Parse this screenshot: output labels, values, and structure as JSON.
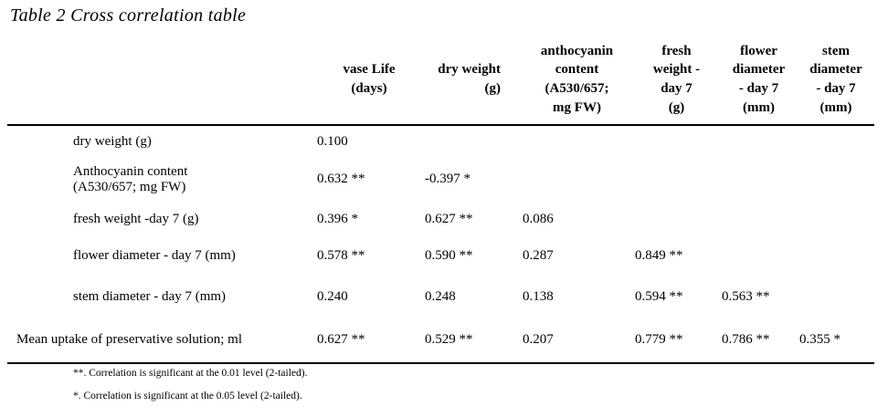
{
  "title": "Table 2 Cross correlation table",
  "table": {
    "columns": [
      "vase Life\n(days)",
      "dry weight\n(g)",
      "anthocyanin\ncontent\n(A530/657;\nmg FW)",
      "fresh\nweight -\nday 7\n(g)",
      "flower\ndiameter\n- day 7\n(mm)",
      "stem\ndiameter\n- day 7\n(mm)"
    ],
    "rows": [
      {
        "label": "dry weight (g)",
        "values": [
          "0.100",
          "",
          "",
          "",
          "",
          ""
        ]
      },
      {
        "label": "Anthocyanin content\n(A530/657; mg FW)",
        "values": [
          "0.632 **",
          "-0.397 *",
          "",
          "",
          "",
          ""
        ]
      },
      {
        "label": "fresh weight -day 7 (g)",
        "values": [
          "0.396 *",
          "0.627 **",
          "0.086",
          "",
          "",
          ""
        ]
      },
      {
        "label": "flower diameter - day 7 (mm)",
        "values": [
          "0.578 **",
          "0.590 **",
          "0.287",
          "0.849 **",
          "",
          ""
        ]
      },
      {
        "label": "stem diameter - day 7 (mm)",
        "values": [
          "0.240",
          "0.248",
          "0.138",
          "0.594 **",
          "0.563 **",
          ""
        ]
      },
      {
        "label": "Mean uptake of preservative solution; ml",
        "values": [
          "0.627 **",
          "0.529 **",
          "0.207",
          "0.779 **",
          "0.786 **",
          "0.355 *"
        ]
      }
    ]
  },
  "footnotes": [
    "**. Correlation is significant at the 0.01 level (2-tailed).",
    "*. Correlation is significant at the 0.05 level (2-tailed)."
  ],
  "colors": {
    "text": "#000000",
    "background": "#ffffff",
    "rule": "#000000"
  }
}
